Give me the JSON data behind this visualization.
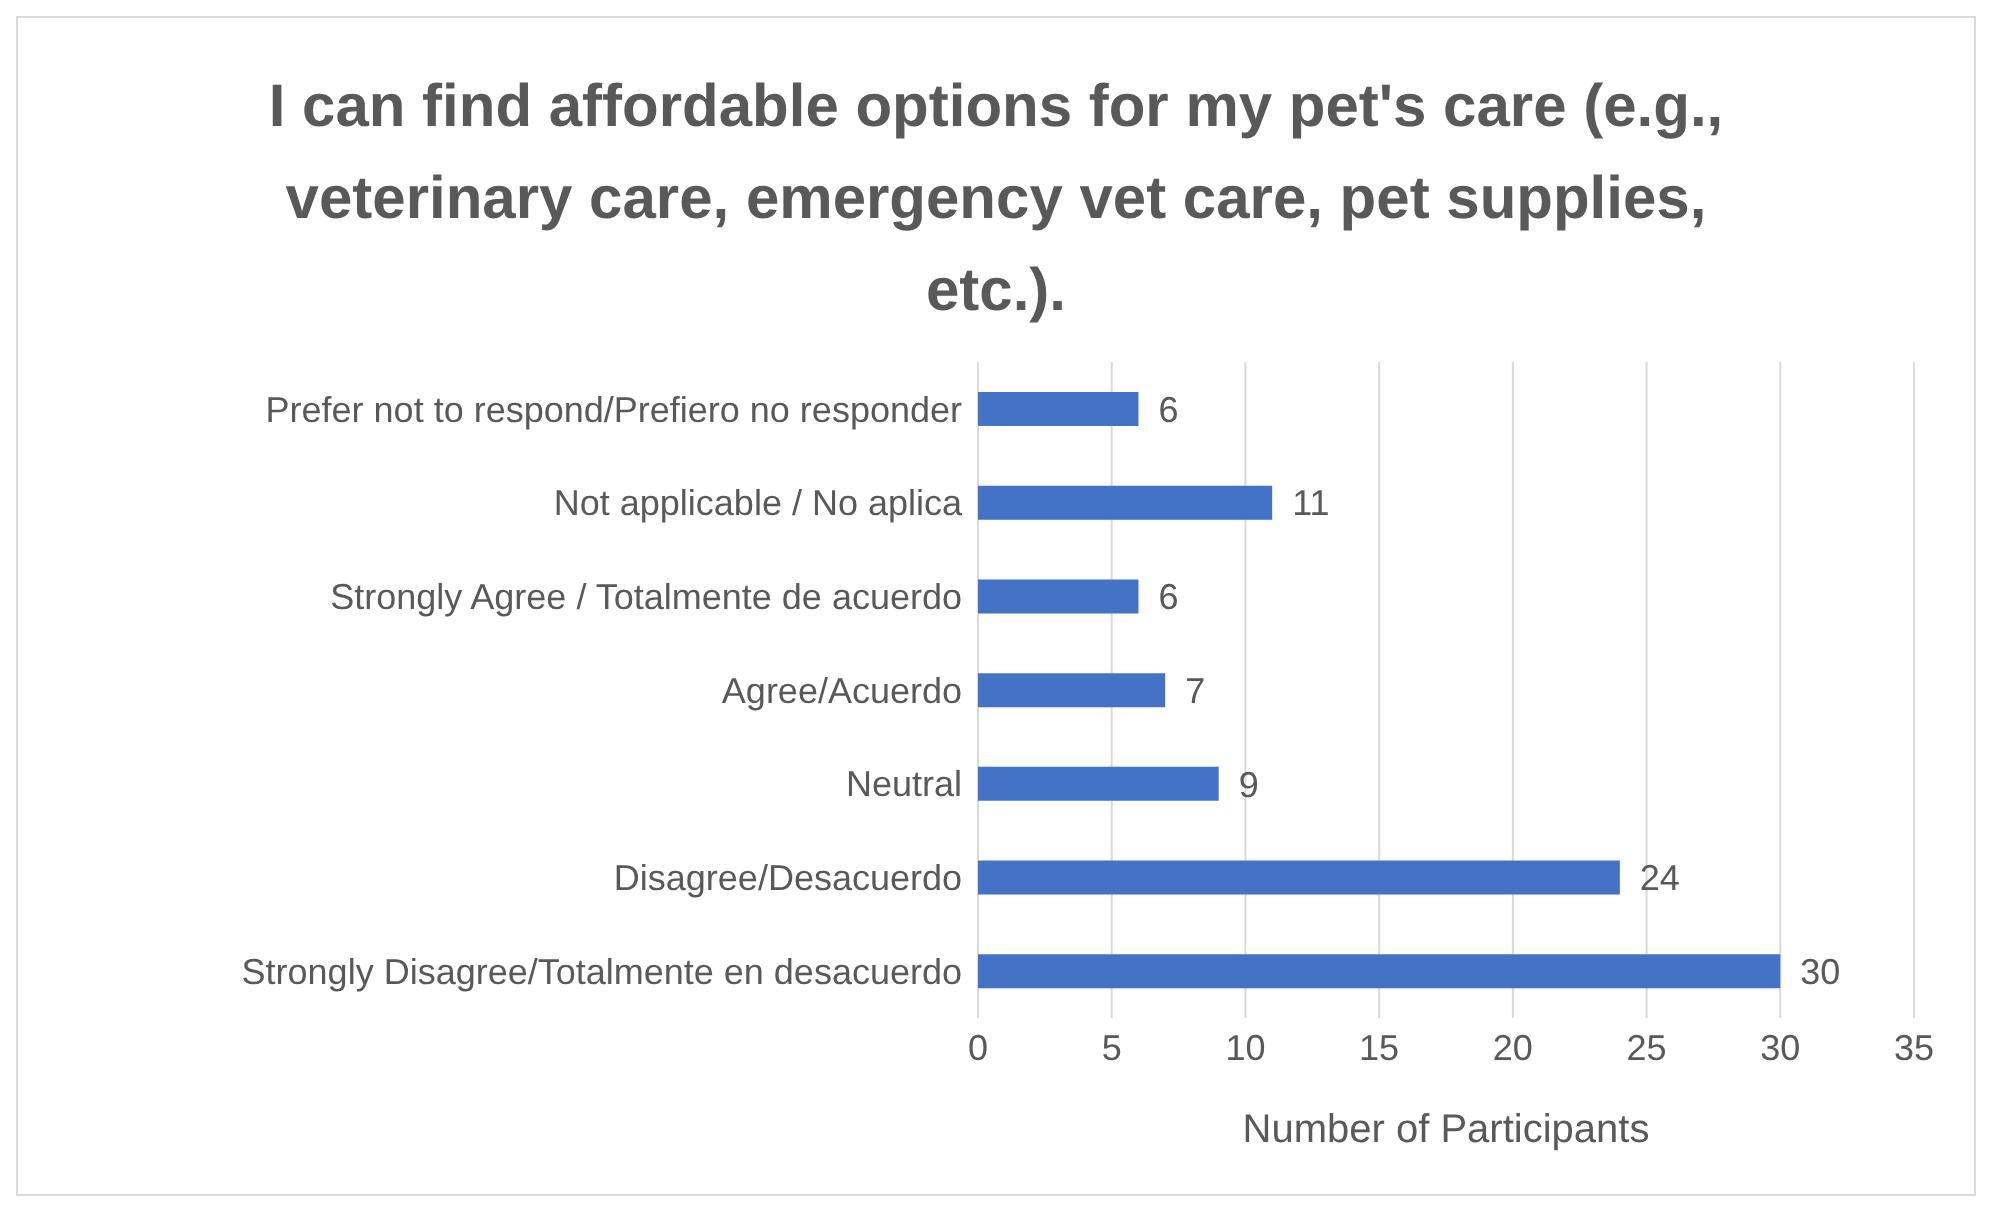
{
  "chart_data": {
    "type": "bar",
    "orientation": "horizontal",
    "title": "I can find affordable options for my pet's care (e.g., veterinary care, emergency vet care, pet supplies, etc.).",
    "xlabel": "Number of Participants",
    "categories": [
      "Prefer not to respond/Prefiero no responder",
      "Not applicable / No aplica",
      "Strongly Agree / Totalmente de acuerdo",
      "Agree/Acuerdo",
      "Neutral",
      "Disagree/Desacuerdo",
      "Strongly Disagree/Totalmente en desacuerdo"
    ],
    "values": [
      6,
      11,
      6,
      7,
      9,
      24,
      30
    ],
    "color": "#4472c4",
    "xlim": [
      0,
      35
    ],
    "xticks": [
      0,
      5,
      10,
      15,
      20,
      25,
      30,
      35
    ],
    "grid": "x",
    "data_labels": true
  }
}
